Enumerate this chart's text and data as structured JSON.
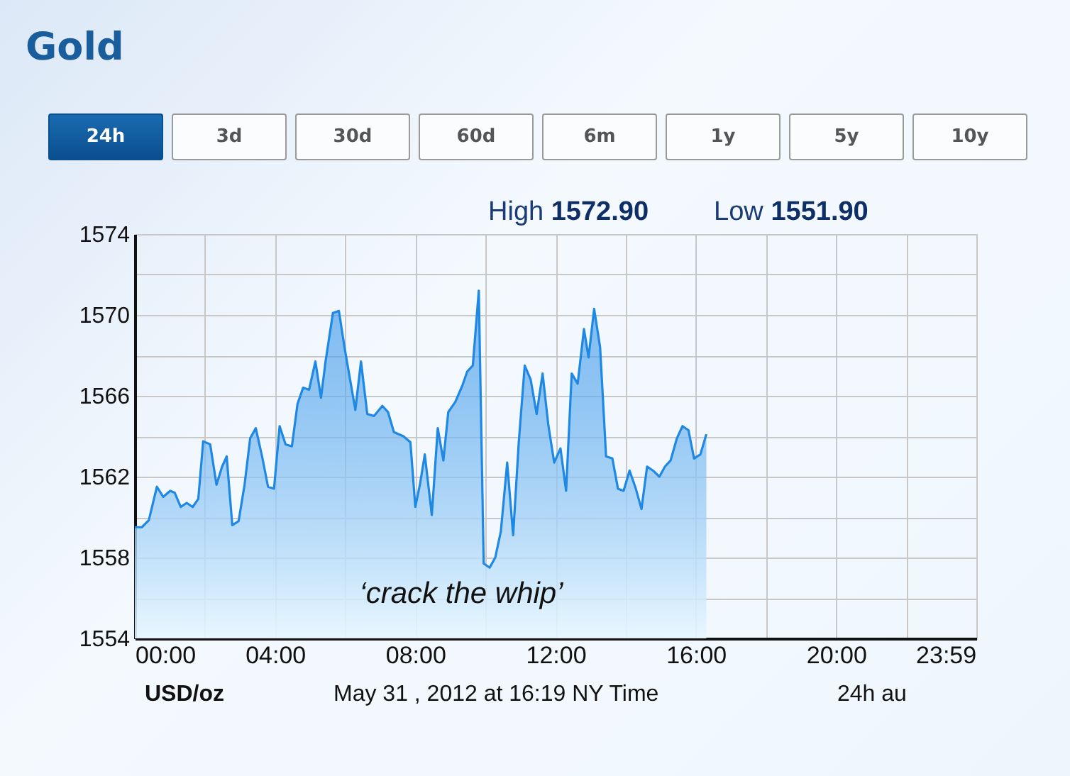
{
  "chart_data": {
    "type": "area",
    "title": "Gold",
    "x": [
      0,
      0.2,
      0.4,
      0.63,
      0.81,
      1.01,
      1.14,
      1.31,
      1.48,
      1.65,
      1.81,
      1.95,
      2.15,
      2.33,
      2.49,
      2.62,
      2.78,
      2.96,
      3.13,
      3.29,
      3.45,
      3.63,
      3.8,
      3.97,
      4.13,
      4.3,
      4.48,
      4.64,
      4.8,
      4.97,
      5.15,
      5.31,
      5.44,
      5.65,
      5.82,
      5.98,
      6.12,
      6.29,
      6.45,
      6.63,
      6.82,
      7.06,
      7.22,
      7.39,
      7.66,
      7.86,
      8.0,
      8.13,
      8.27,
      8.47,
      8.64,
      8.8,
      8.94,
      9.14,
      9.34,
      9.48,
      9.64,
      9.81,
      9.95,
      10.12,
      10.28,
      10.44,
      10.62,
      10.79,
      10.95,
      11.12,
      11.29,
      11.46,
      11.63,
      11.79,
      11.96,
      12.14,
      12.3,
      12.46,
      12.63,
      12.81,
      12.94,
      13.1,
      13.27,
      13.44,
      13.62,
      13.78,
      13.94,
      14.11,
      14.29,
      14.45,
      14.61,
      14.78,
      14.96,
      15.12,
      15.28,
      15.46,
      15.62,
      15.79,
      15.95,
      16.13,
      16.3
    ],
    "series": [
      {
        "color": "#1f88e5",
        "values": [
          1559.5,
          1559.5,
          1559.85,
          1561.5,
          1561.0,
          1561.3,
          1561.2,
          1560.5,
          1560.7,
          1560.5,
          1560.9,
          1563.75,
          1563.6,
          1561.6,
          1562.5,
          1563.0,
          1559.6,
          1559.8,
          1561.6,
          1563.9,
          1564.4,
          1563.0,
          1561.5,
          1561.4,
          1564.5,
          1563.6,
          1563.5,
          1565.6,
          1566.4,
          1566.3,
          1567.7,
          1565.9,
          1567.7,
          1570.1,
          1570.2,
          1568.4,
          1567.0,
          1565.3,
          1567.7,
          1565.1,
          1565.0,
          1565.5,
          1565.2,
          1564.2,
          1564.0,
          1563.7,
          1560.5,
          1561.6,
          1563.1,
          1560.1,
          1564.4,
          1562.8,
          1565.2,
          1565.7,
          1566.5,
          1567.2,
          1567.5,
          1571.2,
          1557.7,
          1557.5,
          1558.0,
          1559.3,
          1562.7,
          1559.1,
          1563.7,
          1567.5,
          1566.8,
          1565.1,
          1567.1,
          1564.6,
          1562.7,
          1563.4,
          1561.3,
          1567.1,
          1566.6,
          1569.3,
          1567.9,
          1570.3,
          1568.4,
          1563.0,
          1562.9,
          1561.4,
          1561.3,
          1562.3,
          1561.4,
          1560.4,
          1562.5,
          1562.3,
          1562.0,
          1562.5,
          1562.8,
          1563.9,
          1564.5,
          1564.3,
          1562.9,
          1563.1,
          1564.1
        ]
      }
    ],
    "xlim": [
      0,
      24
    ],
    "xticks": [
      {
        "value": 0,
        "label": "00:00"
      },
      {
        "value": 2,
        "label": null
      },
      {
        "value": 4,
        "label": "04:00"
      },
      {
        "value": 6,
        "label": null
      },
      {
        "value": 8,
        "label": "08:00"
      },
      {
        "value": 10,
        "label": null
      },
      {
        "value": 12,
        "label": "12:00"
      },
      {
        "value": 14,
        "label": null
      },
      {
        "value": 16,
        "label": "16:00"
      },
      {
        "value": 18,
        "label": null
      },
      {
        "value": 20,
        "label": "20:00"
      },
      {
        "value": 22,
        "label": null
      },
      {
        "value": 23.983,
        "label": "23:59"
      }
    ],
    "ylim": [
      1554,
      1574
    ],
    "yticks": [
      1554,
      {
        "value": 1556,
        "label": null
      },
      1558,
      {
        "value": 1560,
        "label": null
      },
      1562,
      {
        "value": 1564,
        "label": null
      },
      1566,
      {
        "value": 1568,
        "label": null
      },
      1570,
      {
        "value": 1572,
        "label": null
      },
      1574
    ],
    "grid": true,
    "annotations": [
      "24h",
      "3d",
      "30d",
      "60d",
      "6m",
      "1y",
      "5y",
      "10y",
      "High 1572.90",
      "Low 1551.90",
      "‘crack the whip’",
      "USD/oz",
      "May 31 , 2012 at 16:19 NY Time",
      "24h au"
    ]
  }
}
